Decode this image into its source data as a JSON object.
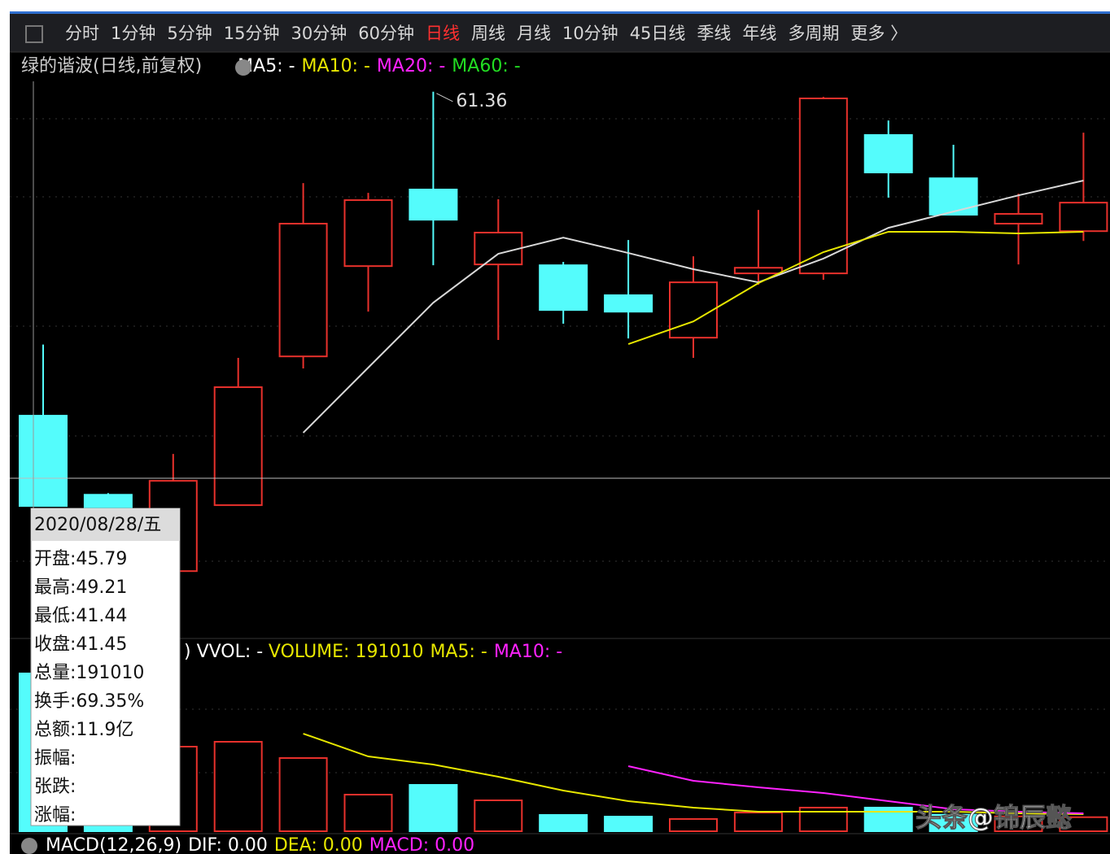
{
  "toolbar": {
    "tabs": [
      "分时",
      "1分钟",
      "5分钟",
      "15分钟",
      "30分钟",
      "60分钟",
      "日线",
      "周线",
      "月线",
      "10分钟",
      "45日线",
      "季线",
      "年线",
      "多周期",
      "更多 〉"
    ],
    "active": 6
  },
  "chart_data": [
    {
      "type": "candlestick",
      "title": "绿的谐波(日线,前复权)",
      "legend": [
        {
          "text": "MA5: -",
          "color": "#ffffff"
        },
        {
          "text": "MA10: -",
          "color": "#e6e600"
        },
        {
          "text": "MA20: -",
          "color": "#ff22ff"
        },
        {
          "text": "MA60: -",
          "color": "#22dd22"
        }
      ],
      "ylim": [
        35.2,
        61.86
      ],
      "up_color": "#e8312c",
      "down_color": "#54fcfc",
      "candles": [
        {
          "open": 45.79,
          "high": 49.21,
          "low": 41.44,
          "close": 41.45
        },
        {
          "open": 41.99,
          "high": 42.07,
          "low": 40.5,
          "close": 41.0
        },
        {
          "open": 38.32,
          "high": 43.95,
          "low": 38.32,
          "close": 42.66
        },
        {
          "open": 41.49,
          "high": 48.57,
          "low": 41.49,
          "close": 47.16
        },
        {
          "open": 48.64,
          "high": 56.97,
          "low": 48.06,
          "close": 55.02
        },
        {
          "open": 52.98,
          "high": 56.5,
          "low": 50.79,
          "close": 56.15
        },
        {
          "open": 56.66,
          "high": 61.36,
          "low": 53.02,
          "close": 55.21
        },
        {
          "open": 53.06,
          "high": 56.19,
          "low": 49.43,
          "close": 54.59
        },
        {
          "open": 53.02,
          "high": 53.18,
          "low": 50.21,
          "close": 50.87
        },
        {
          "open": 51.58,
          "high": 54.23,
          "low": 49.5,
          "close": 50.79
        },
        {
          "open": 49.54,
          "high": 53.45,
          "low": 48.57,
          "close": 52.2
        },
        {
          "open": 52.63,
          "high": 55.68,
          "low": 52.08,
          "close": 52.9
        },
        {
          "open": 52.63,
          "high": 61.11,
          "low": 52.32,
          "close": 61.04
        },
        {
          "open": 59.28,
          "high": 59.98,
          "low": 56.27,
          "close": 57.48
        },
        {
          "open": 57.2,
          "high": 58.81,
          "low": 55.45,
          "close": 55.45
        },
        {
          "open": 55.02,
          "high": 56.46,
          "low": 53.06,
          "close": 55.49
        },
        {
          "open": 54.66,
          "high": 59.39,
          "low": 54.19,
          "close": 56.03
        }
      ],
      "series": [
        {
          "color": "#d8d8d8",
          "values": [
            null,
            null,
            null,
            null,
            44.97,
            48.1,
            51.22,
            53.57,
            54.35,
            53.61,
            52.83,
            52.2,
            53.34,
            54.82,
            55.6,
            56.38,
            57.09
          ]
        },
        {
          "color": "#e6e600",
          "values": [
            null,
            null,
            null,
            null,
            null,
            null,
            null,
            null,
            null,
            49.23,
            50.32,
            52.16,
            53.65,
            54.63,
            54.63,
            54.55,
            54.63
          ]
        }
      ]
    },
    {
      "type": "bar",
      "legend": [
        {
          "text": ") VVOL: -",
          "color": "#ffffff"
        },
        {
          "text": "VOLUME: 191010",
          "color": "#e6e600"
        },
        {
          "text": "MA5: -",
          "color": "#e6e600"
        },
        {
          "text": "MA10: -",
          "color": "#ff22ff"
        }
      ],
      "ylim": [
        0,
        198900
      ],
      "values": [
        191010,
        150000,
        102400,
        108300,
        88600,
        44300,
        56100,
        37400,
        19700,
        17700,
        14800,
        22600,
        28600,
        28600,
        20000,
        18000,
        17000
      ],
      "series": [
        {
          "color": "#e6e600",
          "values": [
            null,
            null,
            null,
            null,
            118150,
            90580,
            80740,
            65970,
            49230,
            36430,
            28550,
            23630,
            23630,
            23630,
            23630,
            21660,
            20680
          ]
        },
        {
          "color": "#ff22ff",
          "values": [
            null,
            null,
            null,
            null,
            null,
            null,
            null,
            null,
            null,
            78770,
            61050,
            53170,
            46280,
            36430,
            26580,
            23630,
            21660
          ]
        }
      ]
    },
    {
      "type": "macd",
      "legend": [
        {
          "text": "MACD(12,26,9)",
          "color": "#ffffff"
        },
        {
          "text": "DIF: 0.00",
          "color": "#ffffff"
        },
        {
          "text": "DEA: 0.00",
          "color": "#e6e600"
        },
        {
          "text": "MACD: 0.00",
          "color": "#ff22ff"
        }
      ]
    }
  ],
  "tooltip": {
    "header": "2020/08/28/五",
    "rows": [
      "开盘:45.79",
      "最高:49.21",
      "最低:41.44",
      "收盘:41.45",
      "总量:191010",
      "换手:69.35%",
      "总额:11.9亿",
      "振幅:",
      "张跌:",
      "涨幅:"
    ]
  },
  "watermark": "头条@锦辰懿"
}
